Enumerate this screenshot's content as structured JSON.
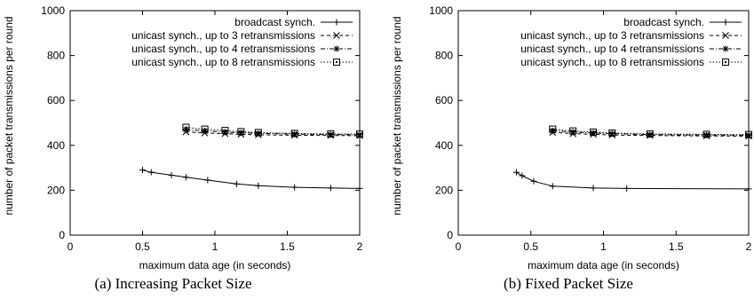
{
  "chart_data": [
    {
      "type": "line",
      "caption": "(a) Increasing Packet Size",
      "xlabel": "maximum data age (in seconds)",
      "ylabel": "number of packet transmissions per round",
      "xlim": [
        0,
        2
      ],
      "ylim": [
        0,
        1000
      ],
      "xticks": [
        "0",
        "0.5",
        "1",
        "1.5",
        "2"
      ],
      "yticks": [
        "0",
        "200",
        "400",
        "600",
        "800",
        "1000"
      ],
      "grid": false,
      "legend_position": "top-right",
      "series": [
        {
          "name": "broadcast synch.",
          "marker": "plus",
          "dash": "solid",
          "x": [
            0.5,
            0.56,
            0.7,
            0.8,
            0.95,
            1.15,
            1.3,
            1.55,
            1.8,
            2.0
          ],
          "y": [
            290,
            280,
            267,
            258,
            245,
            228,
            220,
            213,
            210,
            208
          ]
        },
        {
          "name": "unicast synch., up to 3 retransmissions",
          "marker": "cross",
          "dash": "dashed",
          "x": [
            0.8,
            0.93,
            1.07,
            1.18,
            1.3,
            1.55,
            1.8,
            2.0
          ],
          "y": [
            460,
            455,
            452,
            449,
            447,
            445,
            444,
            443
          ]
        },
        {
          "name": "unicast synch., up to 4 retransmissions",
          "marker": "star",
          "dash": "dashdot",
          "x": [
            0.8,
            0.93,
            1.07,
            1.18,
            1.3,
            1.55,
            1.8,
            2.0
          ],
          "y": [
            470,
            464,
            459,
            456,
            453,
            450,
            448,
            447
          ]
        },
        {
          "name": "unicast synch., up to 8 retransmissions",
          "marker": "square",
          "dash": "dotted",
          "x": [
            0.8,
            0.93,
            1.07,
            1.18,
            1.3,
            1.55,
            1.8,
            2.0
          ],
          "y": [
            480,
            472,
            466,
            461,
            457,
            453,
            451,
            450
          ]
        }
      ]
    },
    {
      "type": "line",
      "caption": "(b) Fixed Packet Size",
      "xlabel": "maximum data age (in seconds)",
      "ylabel": "number of packet transmissions per round",
      "xlim": [
        0,
        2
      ],
      "ylim": [
        0,
        1000
      ],
      "xticks": [
        "0",
        "0.5",
        "1",
        "1.5",
        "2"
      ],
      "yticks": [
        "0",
        "200",
        "400",
        "600",
        "800",
        "1000"
      ],
      "grid": false,
      "legend_position": "top-right",
      "series": [
        {
          "name": "broadcast synch.",
          "marker": "plus",
          "dash": "solid",
          "x": [
            0.4,
            0.44,
            0.52,
            0.65,
            0.93,
            1.16,
            2.0
          ],
          "y": [
            280,
            265,
            240,
            218,
            210,
            208,
            206
          ]
        },
        {
          "name": "unicast synch., up to 3 retransmissions",
          "marker": "cross",
          "dash": "dashed",
          "x": [
            0.65,
            0.79,
            0.93,
            1.06,
            1.32,
            1.71,
            2.0
          ],
          "y": [
            458,
            452,
            449,
            446,
            444,
            442,
            441
          ]
        },
        {
          "name": "unicast synch., up to 4 retransmissions",
          "marker": "star",
          "dash": "dashdot",
          "x": [
            0.65,
            0.79,
            0.93,
            1.06,
            1.32,
            1.71,
            2.0
          ],
          "y": [
            465,
            459,
            455,
            452,
            448,
            446,
            445
          ]
        },
        {
          "name": "unicast synch., up to 8 retransmissions",
          "marker": "square",
          "dash": "dotted",
          "x": [
            0.65,
            0.79,
            0.93,
            1.06,
            1.32,
            1.71,
            2.0
          ],
          "y": [
            472,
            464,
            459,
            455,
            451,
            449,
            448
          ]
        }
      ]
    }
  ]
}
